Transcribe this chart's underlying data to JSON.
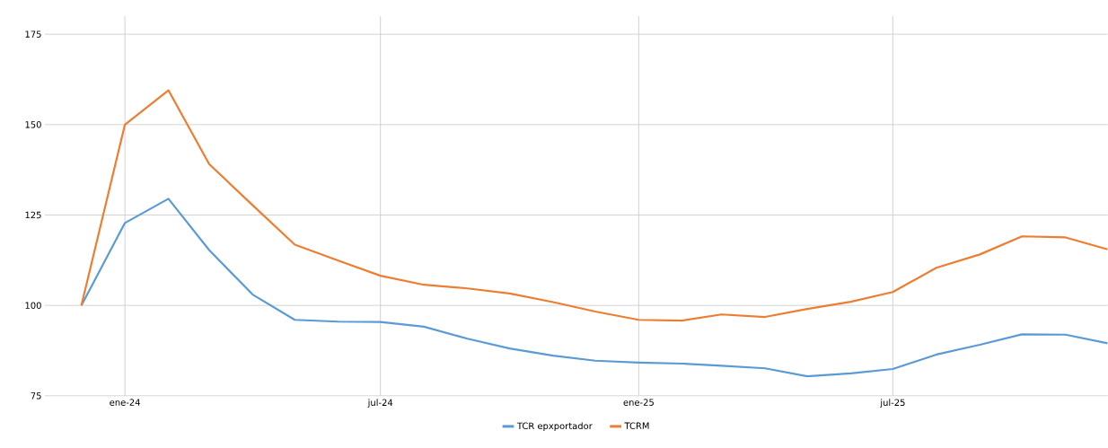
{
  "chart_data": {
    "type": "line",
    "x": [
      "2023-12-01",
      "2024-01-01",
      "2024-02-01",
      "2024-03-01",
      "2024-04-01",
      "2024-05-01",
      "2024-06-01",
      "2024-07-01",
      "2024-08-01",
      "2024-09-01",
      "2024-10-01",
      "2024-11-01",
      "2024-12-01",
      "2025-01-01",
      "2025-02-01",
      "2025-03-01",
      "2025-04-01",
      "2025-05-01",
      "2025-06-01",
      "2025-07-01",
      "2025-08-01",
      "2025-09-01",
      "2025-10-01",
      "2025-11-01",
      "2025-12-01"
    ],
    "series": [
      {
        "name": "TCR epxportador",
        "color": "#5b9bd5",
        "values": [
          100,
          122.8,
          129.5,
          115.3,
          103,
          96,
          95.5,
          95.4,
          94.1,
          90.8,
          88.1,
          86.1,
          84.7,
          84.2,
          83.9,
          83.3,
          82.6,
          80.4,
          81.2,
          82.4,
          86.4,
          89.1,
          92,
          91.9,
          89.5
        ]
      },
      {
        "name": "TCRM",
        "color": "#ed7d31",
        "values": [
          100,
          150,
          159.5,
          139.1,
          127.7,
          116.8,
          112.4,
          108.2,
          105.7,
          104.7,
          103.3,
          100.9,
          98.3,
          96,
          95.8,
          97.5,
          96.8,
          99,
          101,
          103.7,
          110.4,
          114.1,
          119.1,
          118.8,
          115.5
        ]
      }
    ],
    "xlim": [
      "2023-11-05",
      "2025-12-01"
    ],
    "xticks": [
      {
        "value": "2024-01-01",
        "label": "ene-24"
      },
      {
        "value": "2024-07-01",
        "label": "jul-24"
      },
      {
        "value": "2025-01-01",
        "label": "ene-25"
      },
      {
        "value": "2025-07-01",
        "label": "jul-25"
      }
    ],
    "ylim": [
      75,
      180
    ],
    "yticks": [
      75,
      100,
      125,
      150,
      175
    ],
    "grid": true,
    "legend": "bottom",
    "marker": "none",
    "line_style": "solid"
  }
}
